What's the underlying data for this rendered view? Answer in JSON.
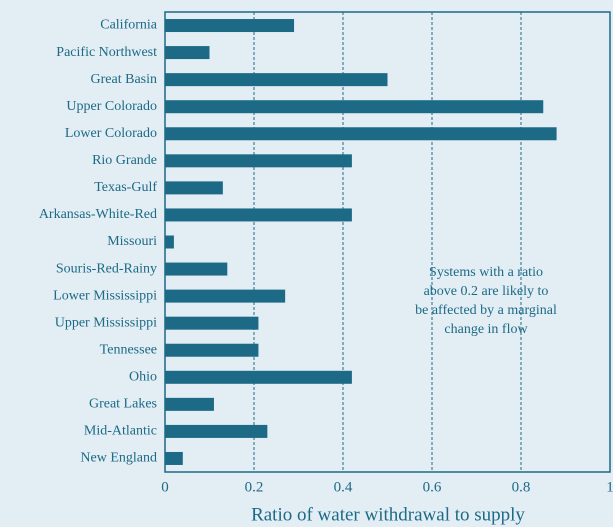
{
  "chart_data": {
    "type": "bar",
    "orientation": "horizontal",
    "xlabel": "Ratio of water withdrawal to supply",
    "annotation": [
      "Systems with a ratio",
      "above 0.2 are likely to",
      "be affected by a marginal",
      "change in flow"
    ],
    "categories": [
      "California",
      "Pacific Northwest",
      "Great Basin",
      "Upper Colorado",
      "Lower Colorado",
      "Rio Grande",
      "Texas-Gulf",
      "Arkansas-White-Red",
      "Missouri",
      "Souris-Red-Rainy",
      "Lower Mississippi",
      "Upper Mississippi",
      "Tennessee",
      "Ohio",
      "Great Lakes",
      "Mid-Atlantic",
      "New England"
    ],
    "values": [
      0.29,
      0.1,
      0.5,
      0.85,
      0.88,
      0.42,
      0.13,
      0.42,
      0.02,
      0.14,
      0.27,
      0.21,
      0.21,
      0.42,
      0.11,
      0.23,
      0.04
    ],
    "color": "#1c6a86",
    "xlim": [
      0,
      1
    ],
    "xticks": [
      0,
      0.2,
      0.4,
      0.6,
      0.8,
      1
    ],
    "grid": true
  }
}
